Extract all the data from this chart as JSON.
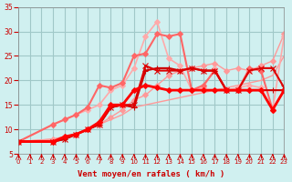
{
  "xlabel": "Vent moyen/en rafales ( km/h )",
  "ylabel": "",
  "bg_color": "#d0f0f0",
  "grid_color": "#a0c8c8",
  "xlim": [
    0,
    23
  ],
  "ylim": [
    5,
    35
  ],
  "yticks": [
    5,
    10,
    15,
    20,
    25,
    30,
    35
  ],
  "xticks": [
    0,
    1,
    2,
    3,
    4,
    5,
    6,
    7,
    8,
    9,
    10,
    11,
    12,
    13,
    14,
    15,
    16,
    17,
    18,
    19,
    20,
    21,
    22,
    23
  ],
  "lines": [
    {
      "x": [
        0,
        1,
        2,
        3,
        4,
        5,
        6,
        7,
        8,
        9,
        10,
        11,
        12,
        13,
        14,
        15,
        16,
        17,
        18,
        19,
        20,
        21,
        22,
        23
      ],
      "y": [
        7.5,
        null,
        null,
        8,
        8.5,
        9,
        10,
        11,
        12,
        13,
        14.5,
        15,
        15.5,
        16,
        16.5,
        17,
        17.5,
        18,
        18.5,
        19,
        19.5,
        20,
        21,
        25
      ],
      "color": "#ff9999",
      "lw": 1.0,
      "marker": null,
      "markersize": 3
    },
    {
      "x": [
        0,
        1,
        2,
        3,
        4,
        5,
        6,
        7,
        8,
        9,
        10,
        11,
        12,
        13,
        14,
        15,
        16,
        17,
        18,
        19,
        20,
        21,
        22,
        23
      ],
      "y": [
        7.5,
        null,
        null,
        8,
        8.5,
        9,
        10,
        11,
        12.5,
        14,
        16,
        17,
        19,
        21,
        22,
        22.5,
        23,
        23.5,
        22,
        22.5,
        22,
        23,
        24,
        29.5
      ],
      "color": "#ff9999",
      "lw": 1.0,
      "marker": "D",
      "markersize": 3
    },
    {
      "x": [
        0,
        3,
        4,
        5,
        6,
        7,
        8,
        9,
        10,
        11,
        12,
        13,
        14,
        15,
        16,
        17,
        18,
        19,
        20,
        21,
        22,
        23
      ],
      "y": [
        7.5,
        11,
        12,
        13,
        14,
        15,
        18,
        19,
        22.5,
        29,
        32,
        24.5,
        23,
        18,
        18.5,
        22.5,
        18,
        18.5,
        19,
        18.5,
        14,
        29
      ],
      "color": "#ffaaaa",
      "lw": 1.2,
      "marker": "D",
      "markersize": 3
    },
    {
      "x": [
        0,
        3,
        4,
        5,
        6,
        7,
        8,
        9,
        10,
        11,
        12,
        13,
        14,
        15,
        16,
        17,
        18,
        19,
        20,
        21,
        22,
        23
      ],
      "y": [
        7.5,
        11,
        12,
        13,
        14.5,
        19,
        18.5,
        19.5,
        25,
        25.5,
        29.5,
        29,
        29.5,
        18,
        19,
        22,
        18,
        18,
        22.5,
        22,
        14,
        18
      ],
      "color": "#ff6666",
      "lw": 1.5,
      "marker": "D",
      "markersize": 3
    },
    {
      "x": [
        0,
        3,
        4,
        5,
        6,
        7,
        8,
        9,
        10,
        11,
        12,
        13,
        14,
        15,
        16,
        17,
        18,
        19,
        20,
        21,
        22,
        23
      ],
      "y": [
        7.5,
        7.5,
        8,
        9,
        10,
        11,
        14.5,
        15,
        14.5,
        22,
        22.5,
        22.5,
        22,
        22.5,
        22,
        22,
        18,
        18,
        18,
        18,
        18,
        18
      ],
      "color": "#cc0000",
      "lw": 1.5,
      "marker": "+",
      "markersize": 5
    },
    {
      "x": [
        0,
        3,
        4,
        5,
        6,
        7,
        8,
        9,
        10,
        11,
        12,
        13,
        14,
        15,
        16,
        17,
        18,
        19,
        20,
        21,
        22,
        23
      ],
      "y": [
        7.5,
        7.5,
        8,
        9,
        10,
        11,
        14.5,
        15,
        15,
        23,
        22,
        22,
        22,
        22.5,
        22,
        22,
        18,
        18,
        22,
        22.5,
        22.5,
        18.5
      ],
      "color": "#dd0000",
      "lw": 1.5,
      "marker": "x",
      "markersize": 4
    },
    {
      "x": [
        0,
        3,
        4,
        5,
        6,
        7,
        8,
        9,
        10,
        11,
        12,
        13,
        14,
        15,
        16,
        17,
        18,
        19,
        20,
        21,
        22,
        23
      ],
      "y": [
        7.5,
        7.5,
        8.5,
        9,
        10,
        11.5,
        15,
        15,
        18,
        19,
        18.5,
        18,
        18,
        18,
        18,
        18,
        18,
        18,
        18,
        18,
        14,
        18
      ],
      "color": "#ff0000",
      "lw": 2.0,
      "marker": "D",
      "markersize": 3
    }
  ]
}
